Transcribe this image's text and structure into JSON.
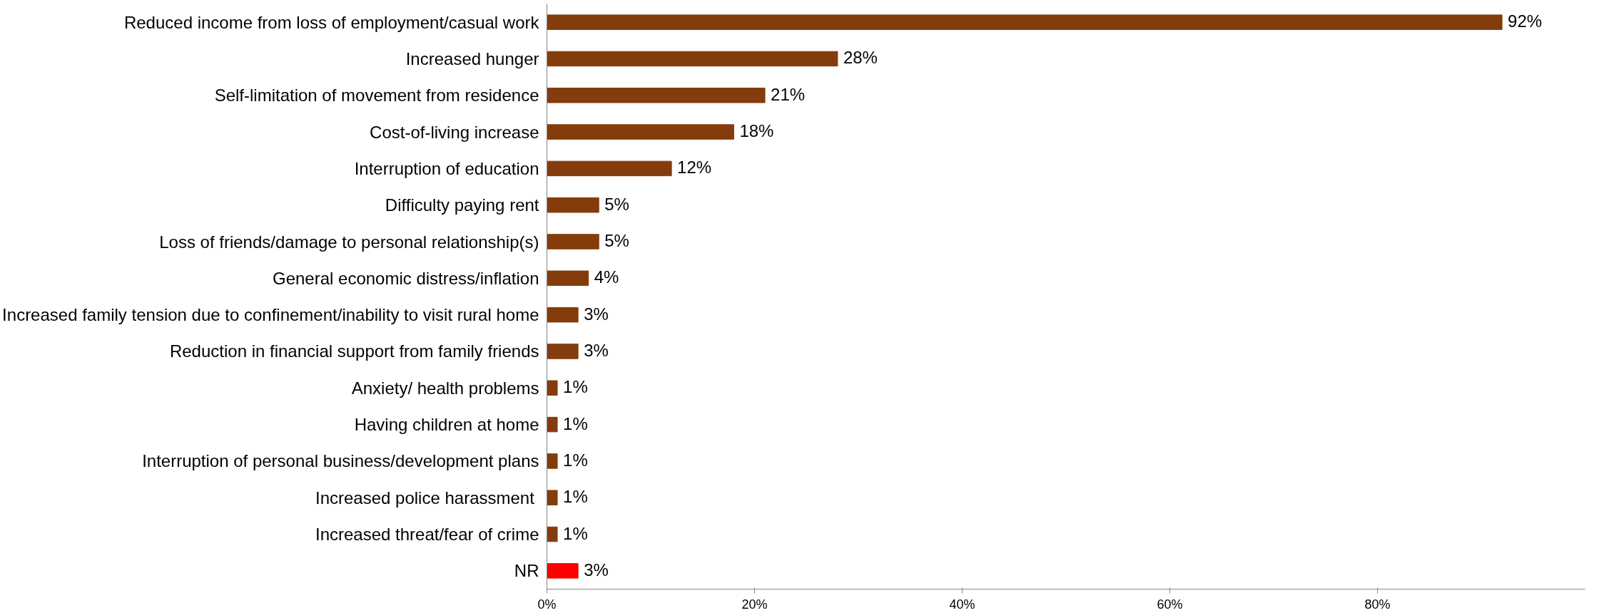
{
  "chart_data": {
    "type": "bar",
    "orientation": "horizontal",
    "categories": [
      "Reduced income from loss of employment/casual work",
      "Increased hunger",
      "Self-limitation of movement from residence",
      "Cost-of-living increase",
      "Interruption of education",
      "Difficulty paying rent",
      "Loss of friends/damage to personal relationship(s)",
      "General economic distress/inflation",
      "Increased family tension due to confinement/inability to visit rural home",
      "Reduction in financial support from family friends",
      "Anxiety/ health problems",
      "Having children at home",
      "Interruption of personal business/development plans",
      "Increased police harassment ",
      "Increased threat/fear of crime",
      "NR"
    ],
    "values": [
      92,
      28,
      21,
      18,
      12,
      5,
      5,
      4,
      3,
      3,
      1,
      1,
      1,
      1,
      1,
      3
    ],
    "value_labels": [
      "92%",
      "28%",
      "21%",
      "18%",
      "12%",
      "5%",
      "5%",
      "4%",
      "3%",
      "3%",
      "1%",
      "1%",
      "1%",
      "1%",
      "1%",
      "3%"
    ],
    "colors": [
      "#843c0c",
      "#843c0c",
      "#843c0c",
      "#843c0c",
      "#843c0c",
      "#843c0c",
      "#843c0c",
      "#843c0c",
      "#843c0c",
      "#843c0c",
      "#843c0c",
      "#843c0c",
      "#843c0c",
      "#843c0c",
      "#843c0c",
      "#ff0000"
    ],
    "xlim": [
      0,
      100
    ],
    "xticks": [
      {
        "value": 0,
        "label": "0%"
      },
      {
        "value": 20,
        "label": "20%"
      },
      {
        "value": 40,
        "label": "40%"
      },
      {
        "value": 60,
        "label": "60%"
      },
      {
        "value": 80,
        "label": "80%"
      }
    ],
    "grid": false
  }
}
